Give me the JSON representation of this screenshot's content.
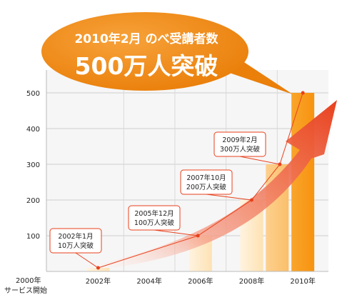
{
  "headline": {
    "line1": "2010年2月 のべ受講者数",
    "line2": "500万人突破"
  },
  "origin_label": {
    "line1": "2000年",
    "line2": "サービス開始"
  },
  "colors": {
    "bubble": "#f08a12",
    "bar_light": "#fde2b4",
    "bar_mid": "#fbbf6a",
    "bar_dark": "#f7930f",
    "line": "#e8401c",
    "arrow": "#e8401c",
    "plot_bg": "#f6f6f6"
  },
  "chart_data": {
    "type": "bar",
    "title": "",
    "xlabel": "",
    "ylabel": "",
    "ylim": [
      0,
      500
    ],
    "yticks": [
      100,
      200,
      300,
      400,
      500
    ],
    "xticks": [
      "2002年",
      "2004年",
      "2006年",
      "2008年",
      "2010年"
    ],
    "grid": true,
    "bars": [
      {
        "x": 2002.0,
        "value": 10,
        "shade": "light"
      },
      {
        "x": 2006.0,
        "value": 100,
        "shade": "light"
      },
      {
        "x": 2008.0,
        "value": 200,
        "shade": "light"
      },
      {
        "x": 2009.0,
        "value": 300,
        "shade": "mid"
      },
      {
        "x": 2010.0,
        "value": 500,
        "shade": "dark"
      }
    ],
    "line_points": [
      {
        "x": 2002.0,
        "y": 10
      },
      {
        "x": 2005.9,
        "y": 100
      },
      {
        "x": 2008.0,
        "y": 200
      },
      {
        "x": 2009.1,
        "y": 300
      },
      {
        "x": 2010.0,
        "y": 500
      }
    ],
    "annotations": [
      {
        "anchor": 0,
        "line1": "2002年1月",
        "line2": "10万人突破"
      },
      {
        "anchor": 1,
        "line1": "2005年12月",
        "line2": "100万人突破"
      },
      {
        "anchor": 2,
        "line1": "2007年10月",
        "line2": "200万人突破"
      },
      {
        "anchor": 3,
        "line1": "2009年2月",
        "line2": "300万人突破"
      }
    ]
  }
}
